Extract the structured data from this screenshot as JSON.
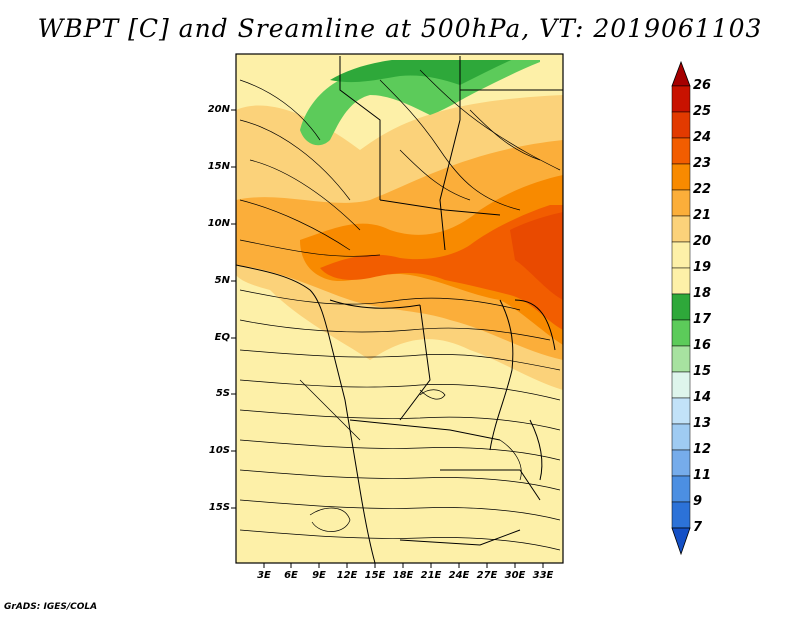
{
  "title": "WBPT [C] and Sreamline at 500hPa, VT: 2019061103",
  "footer": "GrADS: IGES/COLA",
  "map": {
    "lat_labels": [
      "20N",
      "15N",
      "10N",
      "5N",
      "EQ",
      "5S",
      "10S",
      "15S"
    ],
    "lon_labels": [
      "3E",
      "6E",
      "9E",
      "12E",
      "15E",
      "18E",
      "21E",
      "24E",
      "27E",
      "30E",
      "33E"
    ]
  },
  "colorbar": {
    "labels": [
      "26",
      "25",
      "24",
      "23",
      "22",
      "21",
      "20",
      "19",
      "18",
      "17",
      "16",
      "15",
      "14",
      "13",
      "12",
      "11",
      "9",
      "7"
    ],
    "colors": [
      "#a50000",
      "#c81200",
      "#e23a00",
      "#f25d00",
      "#f88a00",
      "#fbae3a",
      "#fbd27a",
      "#fdf0a8",
      "#2ea83a",
      "#5ccb5a",
      "#a7e2a0",
      "#def5ec",
      "#c2e2f8",
      "#9fcbf2",
      "#76aceb",
      "#4c8fe2",
      "#2c72d8",
      "#1450c6"
    ]
  }
}
